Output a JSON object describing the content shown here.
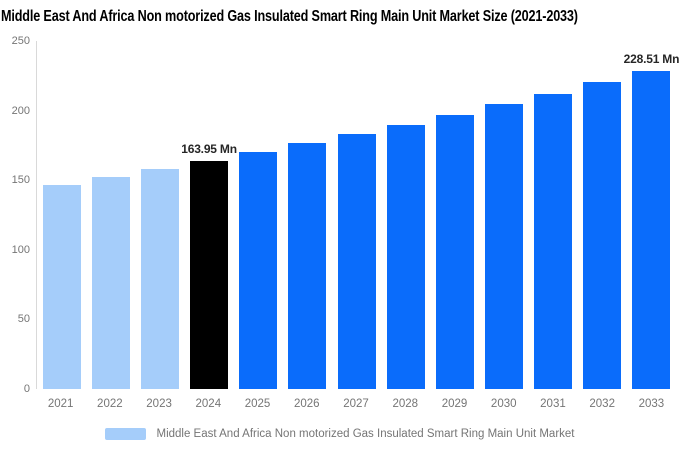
{
  "title": "Middle East And Africa Non motorized Gas Insulated Smart Ring Main Unit Market Size (2021-2033)",
  "colors": {
    "historical_bar": "#A5CDFA",
    "current_bar": "#000000",
    "forecast_bar": "#0A6CFB",
    "axis_line": "#D9D9D9",
    "axis_text": "#757575",
    "data_label_text": "#262626",
    "title_text": "#000000",
    "legend_text": "#757575",
    "background": "#FFFFFF"
  },
  "chart_data": {
    "type": "bar",
    "title": "Middle East And Africa Non motorized Gas Insulated Smart Ring Main Unit Market Size (2021-2033)",
    "xlabel": "",
    "ylabel": "",
    "ylim": [
      0,
      250
    ],
    "yticks": [
      0,
      50,
      100,
      150,
      200,
      250
    ],
    "grid": false,
    "unit": "Mn",
    "categories": [
      "2021",
      "2022",
      "2023",
      "2024",
      "2025",
      "2026",
      "2027",
      "2028",
      "2029",
      "2030",
      "2031",
      "2032",
      "2033"
    ],
    "values": [
      146.77,
      152.29,
      158.01,
      163.95,
      170.11,
      176.5,
      183.14,
      190.02,
      197.16,
      204.57,
      212.26,
      220.24,
      228.51
    ],
    "bar_roles": [
      "historical",
      "historical",
      "historical",
      "current",
      "forecast",
      "forecast",
      "forecast",
      "forecast",
      "forecast",
      "forecast",
      "forecast",
      "forecast",
      "forecast"
    ],
    "role_colors": {
      "historical": "#A5CDFA",
      "current": "#000000",
      "forecast": "#0A6CFB"
    },
    "data_labels": [
      {
        "category": "2024",
        "text": "163.95 Mn"
      },
      {
        "category": "2033",
        "text": "228.51 Mn"
      }
    ],
    "legend": {
      "position": "bottom",
      "items": [
        {
          "label": "Middle East And Africa Non motorized Gas Insulated Smart Ring Main Unit Market",
          "swatch_color": "#A5CDFA"
        }
      ]
    }
  }
}
